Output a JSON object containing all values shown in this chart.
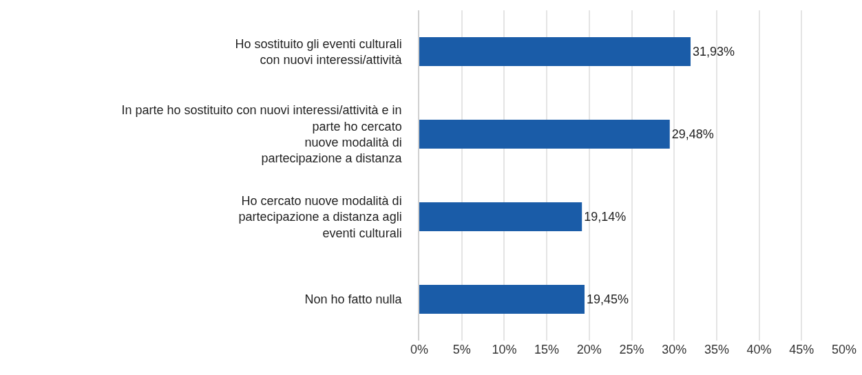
{
  "chart_data": {
    "type": "bar",
    "orientation": "horizontal",
    "categories": [
      "Ho sostituito gli eventi culturali\ncon nuovi interessi/attività",
      "In parte ho sostituito con nuovi interessi/attività e in\nparte ho cercato\nnuove modalità di\npartecipazione a distanza",
      "Ho cercato nuove modalità di\npartecipazione a distanza agli\neventi culturali",
      "Non ho fatto nulla"
    ],
    "values": [
      31.93,
      29.48,
      19.14,
      19.45
    ],
    "value_labels": [
      "31,93%",
      "29,48%",
      "19,14%",
      "19,45%"
    ],
    "color": "#1a5ca8",
    "xlim": [
      0,
      50
    ],
    "xticks": [
      {
        "value": 0,
        "label": "0%"
      },
      {
        "value": 5,
        "label": "5%"
      },
      {
        "value": 10,
        "label": "10%"
      },
      {
        "value": 15,
        "label": "15%"
      },
      {
        "value": 20,
        "label": "20%"
      },
      {
        "value": 25,
        "label": "25%"
      },
      {
        "value": 30,
        "label": "30%"
      },
      {
        "value": 35,
        "label": "35%"
      },
      {
        "value": 40,
        "label": "40%"
      },
      {
        "value": 45,
        "label": "45%"
      },
      {
        "value": 50,
        "label": "50%"
      }
    ],
    "grid": "x"
  }
}
